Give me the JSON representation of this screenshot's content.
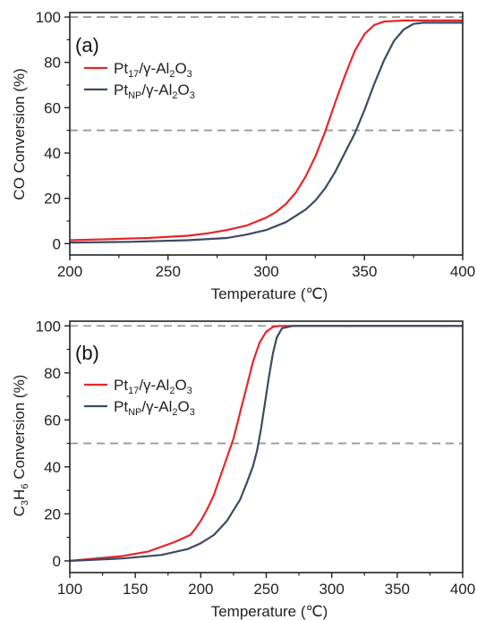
{
  "colors": {
    "pt17": "#e8262a",
    "ptnp": "#3d4a63",
    "ref_line": "#9a9a9a",
    "axis": "#222222"
  },
  "chart_data": [
    {
      "type": "line",
      "panel_label": "(a)",
      "xlabel": "Temperature (℃)",
      "ylabel": "CO Conversion (%)",
      "xlim": [
        200,
        400
      ],
      "ylim": [
        -5,
        102
      ],
      "xticks": [
        "200",
        "250",
        "300",
        "350",
        "400"
      ],
      "yticks": [
        "0",
        "20",
        "40",
        "60",
        "80",
        "100"
      ],
      "reference_lines": [
        100,
        50
      ],
      "legend": "upper-left",
      "series": [
        {
          "name": "Pt17/γ-Al2O3",
          "x": [
            200,
            220,
            240,
            260,
            270,
            280,
            290,
            300,
            305,
            310,
            315,
            320,
            325,
            330,
            335,
            340,
            345,
            350,
            355,
            360,
            370,
            380,
            400
          ],
          "y": [
            1.5,
            2.0,
            2.5,
            3.5,
            4.5,
            6.0,
            8.0,
            11.5,
            14.0,
            17.5,
            22.5,
            29.5,
            38.5,
            49.5,
            62.0,
            74.0,
            85.0,
            92.5,
            96.5,
            98.0,
            98.5,
            98.5,
            98.5
          ]
        },
        {
          "name": "PtNP/γ-Al2O3",
          "x": [
            200,
            230,
            260,
            280,
            290,
            300,
            310,
            320,
            325,
            330,
            335,
            340,
            345,
            350,
            355,
            360,
            365,
            370,
            375,
            380,
            390,
            400
          ],
          "y": [
            0.5,
            0.8,
            1.5,
            2.5,
            4.0,
            6.0,
            9.5,
            15.0,
            19.0,
            24.5,
            31.5,
            40.0,
            48.5,
            59.0,
            70.5,
            81.0,
            89.5,
            94.5,
            97.0,
            97.5,
            97.5,
            97.5
          ]
        }
      ]
    },
    {
      "type": "line",
      "panel_label": "(b)",
      "xlabel": "Temperature (℃)",
      "ylabel": "C3H6 Conversion (%)",
      "xlim": [
        100,
        400
      ],
      "ylim": [
        -5,
        102
      ],
      "xticks": [
        "100",
        "150",
        "200",
        "250",
        "300",
        "350",
        "400"
      ],
      "yticks": [
        "0",
        "20",
        "40",
        "60",
        "80",
        "100"
      ],
      "reference_lines": [
        100,
        50
      ],
      "legend": "upper-left",
      "series": [
        {
          "name": "Pt17/γ-Al2O3",
          "x": [
            100,
            120,
            140,
            160,
            170,
            180,
            190,
            192,
            195,
            200,
            205,
            210,
            215,
            220,
            225,
            230,
            235,
            240,
            245,
            250,
            255,
            260,
            300,
            400
          ],
          "y": [
            0.0,
            1.0,
            2.0,
            4.0,
            6.0,
            8.0,
            10.5,
            11.0,
            13.0,
            17.0,
            22.0,
            28.0,
            36.0,
            44.0,
            52.0,
            63.0,
            74.0,
            85.0,
            93.0,
            97.5,
            99.5,
            100,
            100,
            100
          ]
        },
        {
          "name": "PtNP/γ-Al2O3",
          "x": [
            100,
            140,
            170,
            190,
            200,
            210,
            220,
            230,
            235,
            240,
            243,
            246,
            249,
            252,
            255,
            258,
            262,
            270,
            300,
            400
          ],
          "y": [
            0.0,
            1.0,
            2.5,
            5.0,
            7.5,
            11.0,
            17.0,
            26.0,
            33.0,
            40.5,
            47.0,
            56.0,
            67.0,
            78.0,
            88.0,
            95.0,
            99.0,
            100,
            100,
            100
          ]
        }
      ]
    }
  ]
}
